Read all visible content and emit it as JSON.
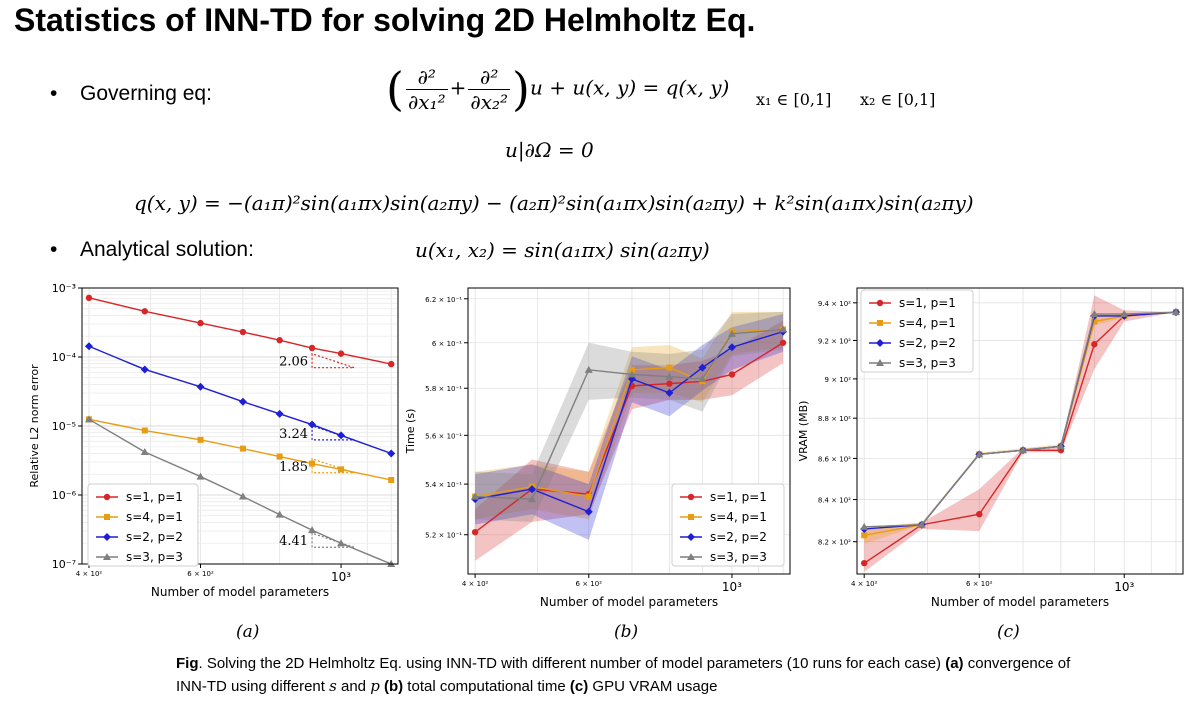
{
  "title": "Statistics of INN-TD for solving 2D Helmholtz Eq.",
  "bullets": {
    "governing_label": "Governing eq:",
    "analytical_label": "Analytical solution:"
  },
  "equations": {
    "x1_domain": "x₁ ∈ [0,1]",
    "x2_domain": "x₂ ∈ [0,1]",
    "gov_tail": "u + u(x, y) = q(x, y)",
    "bc": "u|∂Ω = 0",
    "q_def": "q(x, y) = −(a₁π)²sin(a₁πx)sin(a₂πy) − (a₂π)²sin(a₁πx)sin(a₂πy) + k²sin(a₁πx)sin(a₂πy)",
    "solution": "u(x₁, x₂) = sin(a₁πx) sin(a₂πy)"
  },
  "colors": {
    "s1p1": "#d62728",
    "s4p1": "#e69d13",
    "s2p2": "#1f1fd6",
    "s3p3": "#7f7f7f"
  },
  "subfig_labels": [
    "(a)",
    "(b)",
    "(c)"
  ],
  "caption": {
    "prefix": "Fig",
    "text1": ". Solving the 2D Helmholtz Eq. using INN-TD with different number of model parameters (10 runs for each case) ",
    "a": "(a)",
    "text2": " convergence of INN-TD using different ",
    "s": "s",
    "and": " and ",
    "p": "p",
    "b": " (b)",
    "text3": " total computational time ",
    "c": "(c)",
    "text4": " GPU VRAM usage"
  },
  "chart_data": [
    {
      "type": "line",
      "xlabel": "Number of model parameters",
      "ylabel": "Relative L2 norm error",
      "xscale": "log",
      "yscale": "log",
      "xlim": [
        390,
        1230
      ],
      "ylim": [
        1e-07,
        0.001
      ],
      "x_ticks": [
        {
          "value": 400,
          "label": "4 × 10²"
        },
        {
          "value": 600,
          "label": "6 × 10²"
        },
        {
          "value": 1000,
          "label": "10³"
        }
      ],
      "y_ticks": [
        {
          "value": 1e-07,
          "label": "10⁻⁷"
        },
        {
          "value": 1e-06,
          "label": "10⁻⁶"
        },
        {
          "value": 1e-05,
          "label": "10⁻⁵"
        },
        {
          "value": 0.0001,
          "label": "10⁻⁴"
        },
        {
          "value": 0.001,
          "label": "10⁻³"
        }
      ],
      "grid": true,
      "legend": "bottom-left",
      "x": [
        400,
        490,
        600,
        700,
        800,
        900,
        1000,
        1200
      ],
      "series": [
        {
          "name": "s=1, p=1",
          "color_key": "s1p1",
          "marker": "circle",
          "values": [
            0.00072,
            0.00046,
            0.00031,
            0.00023,
            0.000175,
            0.000135,
            0.000112,
            7.9e-05
          ],
          "x": [
            400,
            490,
            600,
            700,
            800,
            900,
            1000,
            1200
          ]
        },
        {
          "name": "s=4, p=1",
          "color_key": "s4p1",
          "marker": "square",
          "values": [
            1.25e-05,
            8.6e-06,
            6.3e-06,
            4.7e-06,
            3.6e-06,
            2.85e-06,
            2.35e-06,
            1.65e-06
          ],
          "x": [
            400,
            490,
            600,
            700,
            800,
            900,
            1000,
            1200
          ]
        },
        {
          "name": "s=2, p=2",
          "color_key": "s2p2",
          "marker": "diamond",
          "values": [
            0.000143,
            6.6e-05,
            3.7e-05,
            2.25e-05,
            1.5e-05,
            1.05e-05,
            7.3e-06,
            4e-06
          ],
          "x": [
            400,
            490,
            600,
            700,
            800,
            900,
            1000,
            1200
          ]
        },
        {
          "name": "s=3, p=3",
          "color_key": "s3p3",
          "marker": "triangle",
          "values": [
            1.25e-05,
            4.2e-06,
            1.85e-06,
            9.5e-07,
            5.2e-07,
            3.1e-07,
            2e-07,
            1e-07
          ],
          "x": [
            400,
            490,
            600,
            700,
            800,
            900,
            1000,
            1200
          ]
        }
      ],
      "slope_annotations": [
        {
          "label": "2.06",
          "color_key": "s1p1",
          "x": 900,
          "y": 7e-05
        },
        {
          "label": "3.24",
          "color_key": "s2p2",
          "x": 900,
          "y": 6.3e-06
        },
        {
          "label": "1.85",
          "color_key": "s4p1",
          "x": 900,
          "y": 2.1e-06
        },
        {
          "label": "4.41",
          "color_key": "s3p3",
          "x": 900,
          "y": 1.75e-07
        }
      ]
    },
    {
      "type": "line",
      "xlabel": "Number of model parameters",
      "ylabel": "Time (s)",
      "xscale": "log",
      "yscale": "log",
      "xlim": [
        390,
        1230
      ],
      "ylim": [
        0.505,
        0.625
      ],
      "x_ticks": [
        {
          "value": 400,
          "label": "4 × 10²"
        },
        {
          "value": 600,
          "label": "6 × 10²"
        },
        {
          "value": 1000,
          "label": "10³"
        }
      ],
      "y_ticks": [
        {
          "value": 0.52,
          "label": "5.2 × 10⁻¹"
        },
        {
          "value": 0.54,
          "label": "5.4 × 10⁻¹"
        },
        {
          "value": 0.56,
          "label": "5.6 × 10⁻¹"
        },
        {
          "value": 0.58,
          "label": "5.8 × 10⁻¹"
        },
        {
          "value": 0.6,
          "label": "6 × 10⁻¹"
        },
        {
          "value": 0.62,
          "label": "6.2 × 10⁻¹"
        }
      ],
      "grid": true,
      "legend": "bottom-right",
      "x": [
        400,
        490,
        600,
        700,
        800,
        900,
        1000,
        1200
      ],
      "series": [
        {
          "name": "s=1, p=1",
          "color_key": "s1p1",
          "marker": "circle",
          "values": [
            0.521,
            0.538,
            0.536,
            0.581,
            0.582,
            0.583,
            0.586,
            0.6
          ],
          "lower": [
            0.51,
            0.525,
            0.528,
            0.571,
            0.575,
            0.575,
            0.577,
            0.591
          ],
          "upper": [
            0.53,
            0.55,
            0.545,
            0.59,
            0.59,
            0.592,
            0.597,
            0.61
          ],
          "x": [
            400,
            490,
            600,
            700,
            800,
            900,
            1000,
            1200
          ]
        },
        {
          "name": "s=4, p=1",
          "color_key": "s4p1",
          "marker": "square",
          "values": [
            0.535,
            0.539,
            0.535,
            0.588,
            0.589,
            0.583,
            0.605,
            0.606
          ],
          "lower": [
            0.526,
            0.53,
            0.526,
            0.578,
            0.578,
            0.574,
            0.595,
            0.598
          ],
          "upper": [
            0.545,
            0.548,
            0.545,
            0.598,
            0.599,
            0.593,
            0.614,
            0.614
          ],
          "x": [
            400,
            490,
            600,
            700,
            800,
            900,
            1000,
            1200
          ]
        },
        {
          "name": "s=2, p=2",
          "color_key": "s2p2",
          "marker": "diamond",
          "values": [
            0.534,
            0.538,
            0.529,
            0.584,
            0.578,
            0.589,
            0.598,
            0.605
          ],
          "lower": [
            0.524,
            0.528,
            0.518,
            0.574,
            0.568,
            0.579,
            0.588,
            0.596
          ],
          "upper": [
            0.544,
            0.548,
            0.54,
            0.594,
            0.588,
            0.599,
            0.607,
            0.613
          ],
          "x": [
            400,
            490,
            600,
            700,
            800,
            900,
            1000,
            1200
          ]
        },
        {
          "name": "s=3, p=3",
          "color_key": "s3p3",
          "marker": "triangle",
          "values": [
            0.535,
            0.534,
            0.588,
            0.586,
            0.585,
            0.584,
            0.604,
            0.606
          ],
          "lower": [
            0.526,
            0.525,
            0.575,
            0.576,
            0.575,
            0.57,
            0.594,
            0.597
          ],
          "upper": [
            0.545,
            0.544,
            0.6,
            0.596,
            0.595,
            0.597,
            0.613,
            0.614
          ],
          "x": [
            400,
            490,
            600,
            700,
            800,
            900,
            1000,
            1200
          ]
        }
      ]
    },
    {
      "type": "line",
      "xlabel": "Number of model parameters",
      "ylabel": "VRAM (MB)",
      "xscale": "log",
      "yscale": "log",
      "xlim": [
        390,
        1230
      ],
      "ylim": [
        805,
        948
      ],
      "x_ticks": [
        {
          "value": 400,
          "label": "4 × 10²"
        },
        {
          "value": 600,
          "label": "6 × 10²"
        },
        {
          "value": 1000,
          "label": "10³"
        }
      ],
      "y_ticks": [
        {
          "value": 820,
          "label": "8.2 × 10²"
        },
        {
          "value": 840,
          "label": "8.4 × 10²"
        },
        {
          "value": 860,
          "label": "8.6 × 10²"
        },
        {
          "value": 880,
          "label": "8.8 × 10²"
        },
        {
          "value": 900,
          "label": "9 × 10²"
        },
        {
          "value": 920,
          "label": "9.2 × 10²"
        },
        {
          "value": 940,
          "label": "9.4 × 10²"
        }
      ],
      "grid": true,
      "legend": "top-left",
      "x": [
        400,
        490,
        600,
        700,
        800,
        900,
        1000,
        1200
      ],
      "series": [
        {
          "name": "s=1, p=1",
          "color_key": "s1p1",
          "marker": "circle",
          "values": [
            810,
            828,
            833,
            864,
            864,
            918,
            933,
            935
          ],
          "lower": [
            806,
            826,
            825,
            863,
            863,
            905,
            930,
            935
          ],
          "upper": [
            826,
            829,
            845,
            865,
            866,
            944,
            936,
            935
          ],
          "x": [
            400,
            490,
            600,
            700,
            800,
            900,
            1000,
            1200
          ]
        },
        {
          "name": "s=4, p=1",
          "color_key": "s4p1",
          "marker": "square",
          "values": [
            823,
            828,
            862,
            864,
            866,
            930,
            933,
            935
          ],
          "lower": [
            819,
            828,
            862,
            864,
            866,
            928,
            932,
            935
          ],
          "upper": [
            827,
            829,
            863,
            865,
            867,
            933,
            934,
            935
          ],
          "x": [
            400,
            490,
            600,
            700,
            800,
            900,
            1000,
            1200
          ]
        },
        {
          "name": "s=2, p=2",
          "color_key": "s2p2",
          "marker": "diamond",
          "values": [
            826,
            828,
            862,
            864,
            866,
            933,
            933,
            935
          ],
          "x": [
            400,
            490,
            600,
            700,
            800,
            900,
            1000,
            1200
          ]
        },
        {
          "name": "s=3, p=3",
          "color_key": "s3p3",
          "marker": "triangle",
          "values": [
            827,
            828,
            862,
            864,
            866,
            934,
            934,
            935
          ],
          "x": [
            400,
            490,
            600,
            700,
            800,
            900,
            1000,
            1200
          ]
        }
      ]
    }
  ]
}
